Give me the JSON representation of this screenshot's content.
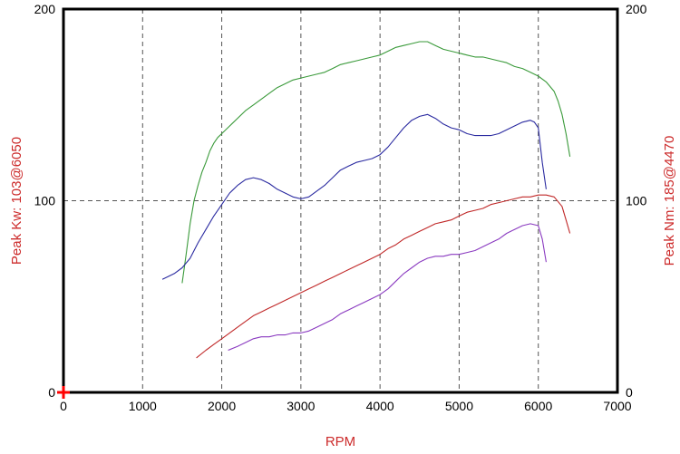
{
  "chart_data": {
    "type": "line",
    "xlabel": "RPM",
    "ylabel_left": "Peak Kw:  103@6050",
    "ylabel_right": "Peak Nm:  185@4470",
    "xlim": [
      0,
      7000
    ],
    "ylim": [
      0,
      200
    ],
    "x_ticks": [
      "0",
      "1000",
      "2000",
      "3000",
      "4000",
      "5000",
      "6000",
      "7000"
    ],
    "y_ticks_left": [
      "0",
      "100",
      "200"
    ],
    "y_ticks_right": [
      "0",
      "100",
      "200"
    ],
    "grid": true,
    "colors": {
      "green": "#3a9a3a",
      "blue": "#2a2aa0",
      "red": "#c02828",
      "purple": "#8a3ac0",
      "axis_title": "#cc2a2a",
      "origin_marker": "#ff0000"
    },
    "series": [
      {
        "color": "green",
        "x": [
          1500,
          1550,
          1600,
          1650,
          1700,
          1750,
          1800,
          1850,
          1900,
          1950,
          2000,
          2100,
          2200,
          2300,
          2400,
          2500,
          2600,
          2700,
          2800,
          2900,
          3000,
          3100,
          3200,
          3300,
          3400,
          3500,
          3600,
          3700,
          3800,
          3900,
          4000,
          4100,
          4200,
          4300,
          4400,
          4500,
          4600,
          4700,
          4800,
          4900,
          5000,
          5100,
          5200,
          5300,
          5400,
          5500,
          5600,
          5700,
          5800,
          5900,
          6000,
          6100,
          6200,
          6250,
          6300,
          6350,
          6400
        ],
        "y": [
          57,
          72,
          88,
          100,
          108,
          115,
          120,
          126,
          130,
          133,
          135,
          139,
          143,
          147,
          150,
          153,
          156,
          159,
          161,
          163,
          164,
          165,
          166,
          167,
          169,
          171,
          172,
          173,
          174,
          175,
          176,
          178,
          180,
          181,
          182,
          183,
          183,
          181,
          179,
          178,
          177,
          176,
          175,
          175,
          174,
          173,
          172,
          170,
          169,
          167,
          165,
          162,
          157,
          152,
          145,
          135,
          123
        ]
      },
      {
        "color": "blue",
        "x": [
          1250,
          1300,
          1400,
          1500,
          1600,
          1700,
          1800,
          1900,
          2000,
          2100,
          2200,
          2300,
          2400,
          2500,
          2600,
          2700,
          2800,
          2900,
          3000,
          3100,
          3200,
          3300,
          3400,
          3500,
          3600,
          3700,
          3800,
          3900,
          4000,
          4100,
          4200,
          4300,
          4400,
          4500,
          4600,
          4700,
          4800,
          4900,
          5000,
          5100,
          5200,
          5300,
          5400,
          5500,
          5600,
          5700,
          5800,
          5900,
          5950,
          6000,
          6050,
          6100
        ],
        "y": [
          59,
          60,
          62,
          65,
          70,
          78,
          85,
          92,
          98,
          104,
          108,
          111,
          112,
          111,
          109,
          106,
          104,
          102,
          101,
          102,
          105,
          108,
          112,
          116,
          118,
          120,
          121,
          122,
          124,
          128,
          133,
          138,
          142,
          144,
          145,
          143,
          140,
          138,
          137,
          135,
          134,
          134,
          134,
          135,
          137,
          139,
          141,
          142,
          141,
          138,
          120,
          106
        ]
      },
      {
        "color": "red",
        "x": [
          1680,
          1800,
          1900,
          2000,
          2100,
          2200,
          2300,
          2400,
          2500,
          2600,
          2700,
          2800,
          2900,
          3000,
          3100,
          3200,
          3300,
          3400,
          3500,
          3600,
          3700,
          3800,
          3900,
          4000,
          4100,
          4200,
          4300,
          4400,
          4500,
          4600,
          4700,
          4800,
          4900,
          5000,
          5100,
          5200,
          5300,
          5400,
          5500,
          5600,
          5700,
          5800,
          5900,
          6000,
          6050,
          6100,
          6200,
          6300,
          6350,
          6400
        ],
        "y": [
          18,
          22,
          25,
          28,
          31,
          34,
          37,
          40,
          42,
          44,
          46,
          48,
          50,
          52,
          54,
          56,
          58,
          60,
          62,
          64,
          66,
          68,
          70,
          72,
          75,
          77,
          80,
          82,
          84,
          86,
          88,
          89,
          90,
          92,
          94,
          95,
          96,
          98,
          99,
          100,
          101,
          102,
          102,
          103,
          103,
          103,
          102,
          97,
          90,
          83
        ]
      },
      {
        "color": "purple",
        "x": [
          2080,
          2200,
          2300,
          2400,
          2500,
          2600,
          2700,
          2800,
          2900,
          3000,
          3100,
          3200,
          3300,
          3400,
          3500,
          3600,
          3700,
          3800,
          3900,
          4000,
          4100,
          4200,
          4300,
          4400,
          4500,
          4600,
          4700,
          4800,
          4900,
          5000,
          5100,
          5200,
          5300,
          5400,
          5500,
          5600,
          5700,
          5800,
          5900,
          6000,
          6050,
          6100
        ],
        "y": [
          22,
          24,
          26,
          28,
          29,
          29,
          30,
          30,
          31,
          31,
          32,
          34,
          36,
          38,
          41,
          43,
          45,
          47,
          49,
          51,
          54,
          58,
          62,
          65,
          68,
          70,
          71,
          71,
          72,
          72,
          73,
          74,
          76,
          78,
          80,
          83,
          85,
          87,
          88,
          87,
          80,
          68
        ]
      }
    ]
  }
}
